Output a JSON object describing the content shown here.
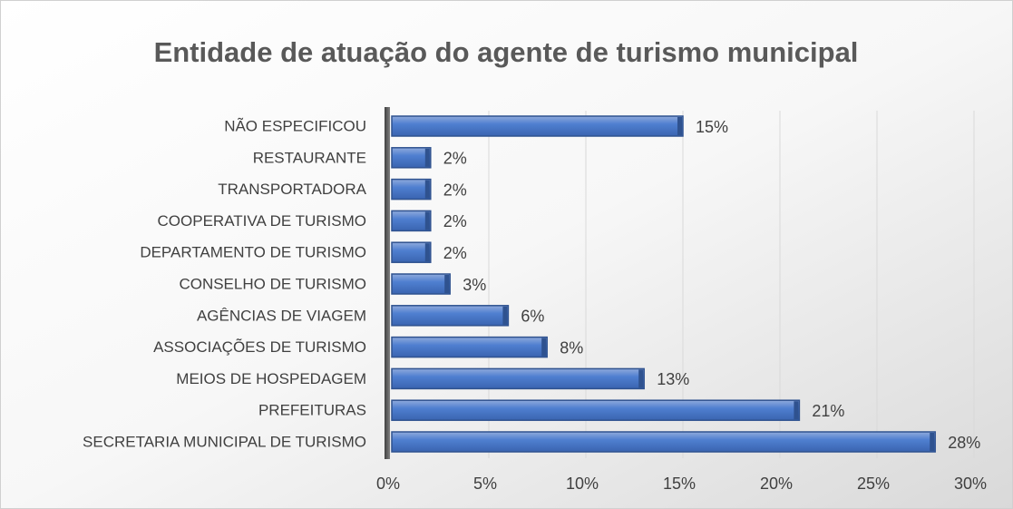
{
  "chart_data": {
    "type": "bar",
    "orientation": "horizontal",
    "title": "Entidade de atuação do agente de turismo municipal",
    "categories": [
      "NÃO ESPECIFICOU",
      "RESTAURANTE",
      "TRANSPORTADORA",
      "COOPERATIVA DE TURISMO",
      "DEPARTAMENTO DE TURISMO",
      "CONSELHO DE TURISMO",
      "AGÊNCIAS DE VIAGEM",
      "ASSOCIAÇÕES DE TURISMO",
      "MEIOS DE HOSPEDAGEM",
      "PREFEITURAS",
      "SECRETARIA MUNICIPAL DE TURISMO"
    ],
    "values": [
      15,
      2,
      2,
      2,
      2,
      3,
      6,
      8,
      13,
      21,
      28
    ],
    "value_labels": [
      "15%",
      "2%",
      "2%",
      "2%",
      "2%",
      "3%",
      "6%",
      "8%",
      "13%",
      "21%",
      "28%"
    ],
    "color": "#4472c4",
    "xlim": [
      0,
      30
    ],
    "xticks": [
      {
        "value": 0,
        "label": "0%"
      },
      {
        "value": 5,
        "label": "5%"
      },
      {
        "value": 10,
        "label": "10%"
      },
      {
        "value": 15,
        "label": "15%"
      },
      {
        "value": 20,
        "label": "20%"
      },
      {
        "value": 25,
        "label": "25%"
      },
      {
        "value": 30,
        "label": "30%"
      }
    ],
    "grid": true
  }
}
